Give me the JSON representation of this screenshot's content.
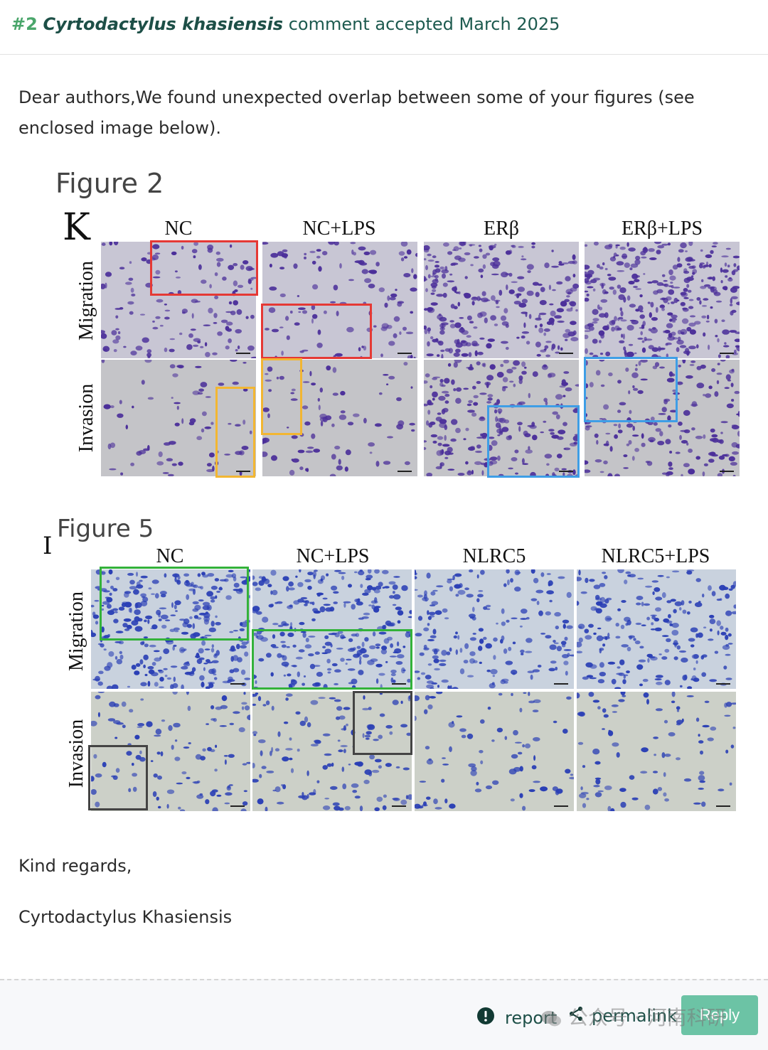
{
  "header": {
    "number": "#2",
    "user": "Cyrtodactylus khasiensis",
    "status": "comment accepted March 2025"
  },
  "comment": {
    "intro": "Dear authors,We found unexpected overlap between some of your figures (see enclosed image below).",
    "closing": "Kind regards,",
    "signature": "Cyrtodactylus Khasiensis"
  },
  "figure2": {
    "title": "Figure 2",
    "panel": "K",
    "columns": [
      "NC",
      "NC+LPS",
      "ERβ",
      "ERβ+LPS"
    ],
    "rows": [
      "Migration",
      "Invasion"
    ]
  },
  "figure5": {
    "title": "Figure 5",
    "panel": "I",
    "columns": [
      "NC",
      "NC+LPS",
      "NLRC5",
      "NLRC5+LPS"
    ],
    "rows": [
      "Migration",
      "Invasion"
    ]
  },
  "colors": {
    "red": "#e53935",
    "orange": "#f2b632",
    "blue": "#3e9ee6",
    "green": "#33b23a",
    "dark": "#444444",
    "fig2_bg": "#c9c9cf",
    "fig5_bg": "#cfd4d8"
  },
  "footer": {
    "report": "report",
    "permalink": "permalink",
    "reply": "Reply",
    "watermark": "公众号 · 河南科研",
    "icons": [
      "alert-icon",
      "share-icon",
      "wechat-icon"
    ]
  }
}
